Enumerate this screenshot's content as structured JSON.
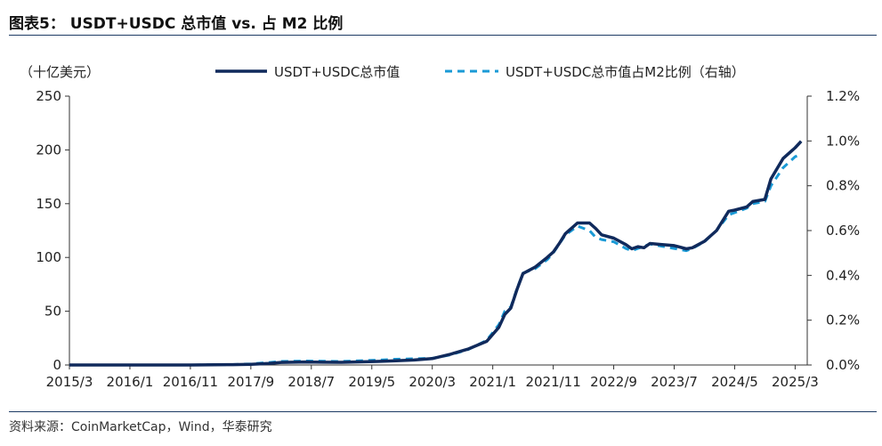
{
  "figure": {
    "title": "图表5： USDT+USDC 总市值 vs. 占 M2 比例",
    "source": "资料来源：CoinMarketCap，Wind，华泰研究"
  },
  "chart_data": {
    "type": "line",
    "title": "",
    "ylabel": "（十亿美元）",
    "y2label": "",
    "ylim": [
      0,
      250
    ],
    "y2lim": [
      0,
      0.012
    ],
    "yticks": [
      0,
      50,
      100,
      150,
      200,
      250
    ],
    "y2ticks": [
      "0.0%",
      "0.2%",
      "0.4%",
      "0.6%",
      "0.8%",
      "1.0%",
      "1.2%"
    ],
    "xticks": [
      "2015/3",
      "2016/1",
      "2016/11",
      "2017/9",
      "2018/7",
      "2019/5",
      "2020/3",
      "2021/1",
      "2021/11",
      "2022/9",
      "2023/7",
      "2024/5",
      "2025/3"
    ],
    "legend_position": "top-center",
    "series": [
      {
        "name": "USDT+USDC总市值",
        "axis": "left",
        "style": "solid",
        "color": "#102a5c",
        "points": [
          [
            "2015/3",
            0
          ],
          [
            "2016/1",
            0
          ],
          [
            "2016/11",
            0
          ],
          [
            "2017/6",
            0.3
          ],
          [
            "2017/9",
            0.6
          ],
          [
            "2017/12",
            1.5
          ],
          [
            "2018/2",
            2.4
          ],
          [
            "2018/6",
            2.8
          ],
          [
            "2018/9",
            2.6
          ],
          [
            "2018/12",
            2.5
          ],
          [
            "2019/3",
            2.9
          ],
          [
            "2019/6",
            3.3
          ],
          [
            "2019/9",
            4.0
          ],
          [
            "2019/12",
            4.6
          ],
          [
            "2020/3",
            6
          ],
          [
            "2020/6",
            10
          ],
          [
            "2020/9",
            15
          ],
          [
            "2020/12",
            22
          ],
          [
            "2021/2",
            35
          ],
          [
            "2021/3",
            47
          ],
          [
            "2021/4",
            53
          ],
          [
            "2021/5",
            70
          ],
          [
            "2021/6",
            85
          ],
          [
            "2021/8",
            91
          ],
          [
            "2021/10",
            100
          ],
          [
            "2021/11",
            105
          ],
          [
            "2021/12",
            113
          ],
          [
            "2022/1",
            122
          ],
          [
            "2022/3",
            132
          ],
          [
            "2022/5",
            132
          ],
          [
            "2022/6",
            127
          ],
          [
            "2022/7",
            121
          ],
          [
            "2022/9",
            118
          ],
          [
            "2022/11",
            112
          ],
          [
            "2022/12",
            108
          ],
          [
            "2023/1",
            110
          ],
          [
            "2023/2",
            109
          ],
          [
            "2023/3",
            113
          ],
          [
            "2023/5",
            112
          ],
          [
            "2023/7",
            111
          ],
          [
            "2023/9",
            108
          ],
          [
            "2023/10",
            109
          ],
          [
            "2023/12",
            115
          ],
          [
            "2024/2",
            125
          ],
          [
            "2024/4",
            143
          ],
          [
            "2024/5",
            144
          ],
          [
            "2024/7",
            147
          ],
          [
            "2024/8",
            152
          ],
          [
            "2024/10",
            154
          ],
          [
            "2024/11",
            173
          ],
          [
            "2025/1",
            192
          ],
          [
            "2025/3",
            202
          ],
          [
            "2025/4",
            208
          ]
        ]
      },
      {
        "name": "USDT+USDC总市值占M2比例（右轴）",
        "axis": "right",
        "style": "dashed",
        "color": "#1a9ad6",
        "points": [
          [
            "2015/3",
            0
          ],
          [
            "2016/1",
            0
          ],
          [
            "2016/11",
            0
          ],
          [
            "2017/6",
            2e-05
          ],
          [
            "2017/9",
            5e-05
          ],
          [
            "2017/12",
            0.00011
          ],
          [
            "2018/2",
            0.00016
          ],
          [
            "2018/6",
            0.00018
          ],
          [
            "2018/9",
            0.00017
          ],
          [
            "2018/12",
            0.00016
          ],
          [
            "2019/3",
            0.00019
          ],
          [
            "2019/6",
            0.00022
          ],
          [
            "2019/9",
            0.00026
          ],
          [
            "2019/12",
            0.00028
          ],
          [
            "2020/3",
            0.0003
          ],
          [
            "2020/6",
            0.00045
          ],
          [
            "2020/9",
            0.0007
          ],
          [
            "2020/12",
            0.0011
          ],
          [
            "2021/2",
            0.0018
          ],
          [
            "2021/3",
            0.0024
          ],
          [
            "2021/4",
            0.0026
          ],
          [
            "2021/5",
            0.0034
          ],
          [
            "2021/6",
            0.0041
          ],
          [
            "2021/8",
            0.0043
          ],
          [
            "2021/10",
            0.0047
          ],
          [
            "2021/11",
            0.005
          ],
          [
            "2021/12",
            0.0054
          ],
          [
            "2022/1",
            0.0058
          ],
          [
            "2022/3",
            0.0062
          ],
          [
            "2022/5",
            0.006
          ],
          [
            "2022/6",
            0.0057
          ],
          [
            "2022/7",
            0.0056
          ],
          [
            "2022/9",
            0.0055
          ],
          [
            "2022/11",
            0.0052
          ],
          [
            "2022/12",
            0.0051
          ],
          [
            "2023/1",
            0.0052
          ],
          [
            "2023/2",
            0.0053
          ],
          [
            "2023/3",
            0.0054
          ],
          [
            "2023/5",
            0.0053
          ],
          [
            "2023/7",
            0.0052
          ],
          [
            "2023/9",
            0.0051
          ],
          [
            "2023/10",
            0.0052
          ],
          [
            "2023/12",
            0.0055
          ],
          [
            "2024/2",
            0.006
          ],
          [
            "2024/4",
            0.0067
          ],
          [
            "2024/5",
            0.0068
          ],
          [
            "2024/7",
            0.007
          ],
          [
            "2024/8",
            0.0072
          ],
          [
            "2024/10",
            0.0073
          ],
          [
            "2024/11",
            0.008
          ],
          [
            "2025/1",
            0.0088
          ],
          [
            "2025/3",
            0.0093
          ],
          [
            "2025/4",
            0.0094
          ]
        ]
      }
    ]
  }
}
